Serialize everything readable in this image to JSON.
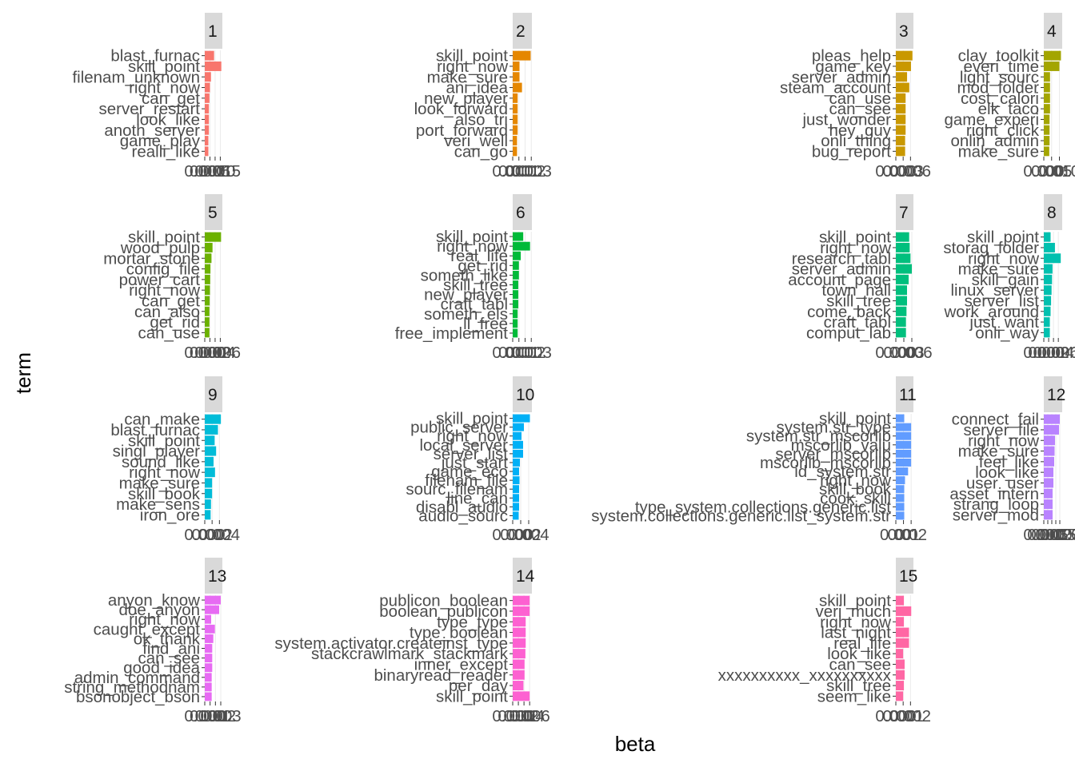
{
  "chart_data": {
    "type": "bar",
    "orientation": "horizontal",
    "facet": true,
    "xlabel": "beta",
    "ylabel": "term",
    "grid": true,
    "legend": "none",
    "facets": [
      {
        "label": "1",
        "color": "#F8766D",
        "tick_labels": [
          "0.000",
          "0.005",
          "0.010",
          "0.015"
        ],
        "terms": [
          "blast_furnac",
          "skill_point",
          "filenam_unknown",
          "right_now",
          "can_get",
          "server_restart",
          "look_like",
          "anoth_server",
          "game_play",
          "realli_like"
        ],
        "values": [
          0.009,
          0.016,
          0.006,
          0.005,
          0.0045,
          0.004,
          0.004,
          0.004,
          0.0035,
          0.0035
        ],
        "xlim": [
          0,
          0.017
        ]
      },
      {
        "label": "2",
        "color": "#E58700",
        "tick_labels": [
          "0.000",
          "0.001",
          "0.002",
          "0.003"
        ],
        "terms": [
          "skill_point",
          "right_now",
          "make_sure",
          "ani_idea",
          "new_player",
          "look_forward",
          "also_tri",
          "port_forward",
          "veri_well",
          "can_go"
        ],
        "values": [
          0.0029,
          0.0011,
          0.0011,
          0.0015,
          0.0008,
          0.0008,
          0.0008,
          0.0008,
          0.0007,
          0.0007
        ],
        "xlim": [
          0,
          0.0031
        ]
      },
      {
        "label": "3",
        "color": "#C99800",
        "tick_labels": [
          "0.000",
          "0.003",
          "0.006"
        ],
        "terms": [
          "pleas_help",
          "game_key",
          "server_admin",
          "steam_account",
          "can_use",
          "can_see",
          "just_wonder",
          "hey_guy",
          "onli_thing",
          "bug_report"
        ],
        "values": [
          0.0068,
          0.0062,
          0.0046,
          0.0055,
          0.004,
          0.004,
          0.004,
          0.004,
          0.0038,
          0.0038
        ],
        "xlim": [
          0,
          0.0072
        ]
      },
      {
        "label": "4",
        "color": "#A3A500",
        "tick_labels": [
          "0.000",
          "0.005",
          "0.010"
        ],
        "terms": [
          "clay_toolkit",
          "everi_time",
          "light_sourc",
          "mod_folder",
          "cost_calori",
          "elk_taco",
          "game_experi",
          "right_click",
          "onlin_admin",
          "make_sure"
        ],
        "values": [
          0.011,
          0.01,
          0.004,
          0.004,
          0.004,
          0.004,
          0.0037,
          0.0037,
          0.0037,
          0.0035
        ],
        "xlim": [
          0,
          0.0118
        ]
      },
      {
        "label": "5",
        "color": "#6BB100",
        "tick_labels": [
          "0.000",
          "0.002",
          "0.004",
          "0.006"
        ],
        "terms": [
          "skill_point",
          "wood_pulp",
          "mortar_stone",
          "config_file",
          "power_cart",
          "right_now",
          "can_get",
          "can_also",
          "get_rid",
          "can_use"
        ],
        "values": [
          0.0063,
          0.003,
          0.0026,
          0.0022,
          0.0021,
          0.002,
          0.0019,
          0.0018,
          0.0018,
          0.0018
        ],
        "xlim": [
          0,
          0.0068
        ]
      },
      {
        "label": "6",
        "color": "#00BA38",
        "tick_labels": [
          "0.000",
          "0.001",
          "0.002",
          "0.003"
        ],
        "terms": [
          "skill_point",
          "right_now",
          "real_life",
          "get_rid",
          "someth_like",
          "skill_tree",
          "new_player",
          "craft_tabl",
          "someth_els",
          "ll_free",
          "free_implement"
        ],
        "values": [
          0.0017,
          0.0028,
          0.0013,
          0.001,
          0.001,
          0.0009,
          0.0009,
          0.0009,
          0.0008,
          0.0008,
          0.0008
        ],
        "xlim": [
          0,
          0.0031
        ]
      },
      {
        "label": "7",
        "color": "#00BF7D",
        "tick_labels": [
          "0.000",
          "0.003",
          "0.006"
        ],
        "terms": [
          "skill_point",
          "right_now",
          "research_tabl",
          "server_admin",
          "account_page",
          "town_hall",
          "skill_tree",
          "come_back",
          "craft_tabl",
          "comput_lab"
        ],
        "values": [
          0.005,
          0.0052,
          0.0055,
          0.006,
          0.0048,
          0.0042,
          0.0042,
          0.004,
          0.0038,
          0.0038
        ],
        "xlim": [
          0,
          0.0066
        ]
      },
      {
        "label": "8",
        "color": "#00C0AF",
        "tick_labels": [
          "0.000",
          "0.002",
          "0.004",
          "0.006"
        ],
        "terms": [
          "skill_point",
          "storag_folder",
          "right_now",
          "make_sure",
          "skill_gain",
          "linux_server",
          "server_list",
          "work_around",
          "just_want",
          "onli_way"
        ],
        "values": [
          0.0028,
          0.0046,
          0.007,
          0.0036,
          0.0034,
          0.0032,
          0.003,
          0.0028,
          0.0025,
          0.0025
        ],
        "xlim": [
          0,
          0.0076
        ]
      },
      {
        "label": "9",
        "color": "#00BCD8",
        "tick_labels": [
          "0.000",
          "0.002",
          "0.004"
        ],
        "terms": [
          "can_make",
          "blast_furnac",
          "skill_point",
          "singl_player",
          "sound_like",
          "right_now",
          "make_sure",
          "skill_book",
          "make_sens",
          "iron_ore"
        ],
        "values": [
          0.0044,
          0.0036,
          0.0027,
          0.0031,
          0.0024,
          0.0028,
          0.002,
          0.002,
          0.0017,
          0.0016
        ],
        "xlim": [
          0,
          0.0048
        ]
      },
      {
        "label": "10",
        "color": "#00B0F6",
        "tick_labels": [
          "0.000",
          "0.002",
          "0.004"
        ],
        "terms": [
          "skill_point",
          "public_server",
          "right_now",
          "local_server",
          "server_list",
          "just_start",
          "game_eco",
          "filenam_file",
          "sourc_filenam",
          "line_can",
          "disabl_audio",
          "audio_sourc"
        ],
        "values": [
          0.0043,
          0.0028,
          0.0022,
          0.0026,
          0.0026,
          0.0018,
          0.0016,
          0.0017,
          0.0016,
          0.0016,
          0.0016,
          0.0015
        ],
        "xlim": [
          0,
          0.0048
        ]
      },
      {
        "label": "11",
        "color": "#619CFF",
        "tick_labels": [
          "0.00",
          "0.01",
          "0.02"
        ],
        "terms": [
          "skill_point",
          "system.str_type",
          "system.str_mscorlib",
          "mscorlib_valu",
          "server_mscorlib",
          "mscorlib_mscorlib",
          "id_system.str",
          "right_now",
          "skill_book",
          "cook_skill",
          "type_system.collections.generic.list",
          "system.collections.generic.list_system.str"
        ],
        "values": [
          0.011,
          0.02,
          0.02,
          0.02,
          0.02,
          0.02,
          0.016,
          0.012,
          0.011,
          0.011,
          0.011,
          0.011
        ],
        "xlim": [
          0,
          0.023
        ]
      },
      {
        "label": "12",
        "color": "#B983FF",
        "tick_labels": [
          "0.000",
          "0.005",
          "0.010",
          "0.015",
          "0.020"
        ],
        "terms": [
          "connect_fail",
          "server_file",
          "right_now",
          "make_sure",
          "feel_like",
          "look_like",
          "user_user",
          "asset_intern",
          "strang_loop",
          "server_mod"
        ],
        "values": [
          0.02,
          0.019,
          0.014,
          0.0135,
          0.013,
          0.012,
          0.012,
          0.011,
          0.011,
          0.011
        ],
        "xlim": [
          0,
          0.023
        ]
      },
      {
        "label": "13",
        "color": "#E76BF3",
        "tick_labels": [
          "0.000",
          "0.001",
          "0.002",
          "0.003"
        ],
        "terms": [
          "anyon_know",
          "doe_anyon",
          "right_now",
          "caught_except",
          "ok_thank",
          "find_ani",
          "can_see",
          "good_idea",
          "admin_command",
          "string_methodnam",
          "bsonobject_bson"
        ],
        "values": [
          0.003,
          0.0027,
          0.0012,
          0.0019,
          0.0016,
          0.0014,
          0.0014,
          0.0014,
          0.0013,
          0.0013,
          0.0013
        ],
        "xlim": [
          0,
          0.0033
        ]
      },
      {
        "label": "14",
        "color": "#FD61D1",
        "tick_labels": [
          "0.000",
          "0.002",
          "0.004",
          "0.006"
        ],
        "terms": [
          "publicon_boolean",
          "boolean_publicon",
          "type_type",
          "type_boolean",
          "system.activator.createinst_type",
          "stackcrawlmark_stackmark",
          "inner_except",
          "binaryread_reader",
          "per_day",
          "skill_point"
        ],
        "values": [
          0.006,
          0.006,
          0.0046,
          0.0046,
          0.0046,
          0.0045,
          0.0042,
          0.0042,
          0.0038,
          0.006
        ],
        "xlim": [
          0,
          0.0068
        ]
      },
      {
        "label": "15",
        "color": "#FF67A4",
        "tick_labels": [
          "0.000",
          "0.001",
          "0.002"
        ],
        "terms": [
          "skill_point",
          "veri_much",
          "right_now",
          "last_night",
          "real_life",
          "look_like",
          "can_see",
          "xxxxxxxxxx_xxxxxxxxxx",
          "skill_tree",
          "seem_like"
        ],
        "values": [
          0.0011,
          0.0021,
          0.0011,
          0.0018,
          0.0018,
          0.001,
          0.0012,
          0.0012,
          0.0011,
          0.001
        ],
        "xlim": [
          0,
          0.0024
        ]
      }
    ]
  }
}
